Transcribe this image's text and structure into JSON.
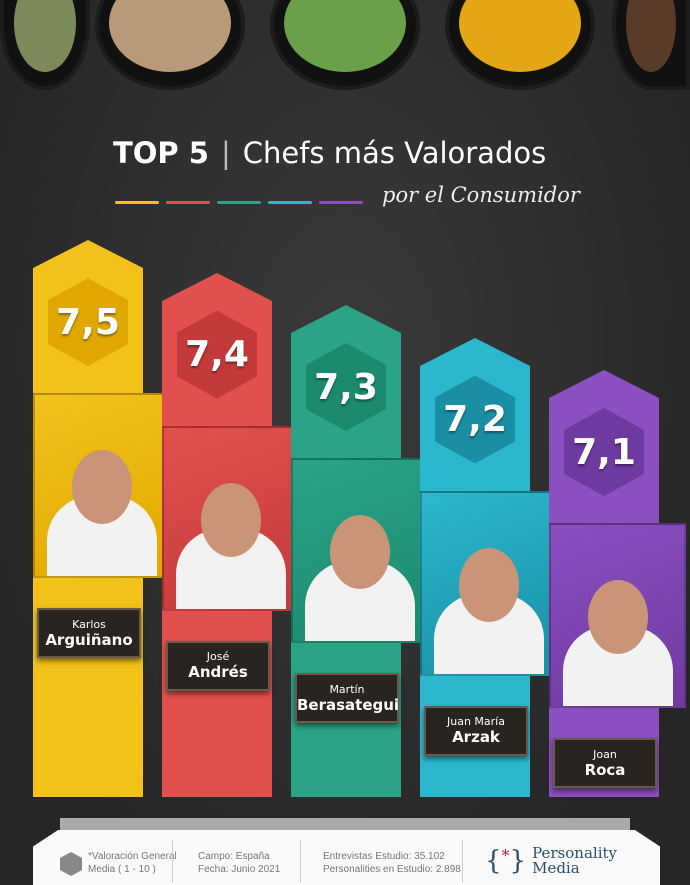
{
  "header": {
    "title_strong": "TOP 5",
    "title_rest": "Chefs más Valorados",
    "subtitle": "por el Consumidor"
  },
  "colors": {
    "yellow": "#f2c21b",
    "red": "#e2504e",
    "teal": "#2aa387",
    "cyan": "#2bb8cf",
    "purple": "#8b4fc0"
  },
  "chart_data": {
    "type": "bar",
    "title": "TOP 5 | Chefs más Valorados por el Consumidor",
    "categories": [
      "Karlos Arguiñano",
      "José Andrés",
      "Martín Berasategui",
      "Juan María Arzak",
      "Joan Roca"
    ],
    "values": [
      7.5,
      7.4,
      7.3,
      7.2,
      7.1
    ],
    "value_labels": [
      "7,5",
      "7,4",
      "7,3",
      "7,2",
      "7,1"
    ],
    "bars": [
      {
        "first": "Karlos",
        "last": "Arguiñano",
        "label": "7,5",
        "value": 7.5,
        "color": "#f2c21b",
        "dark": "#e0a800"
      },
      {
        "first": "José",
        "last": "Andrés",
        "label": "7,4",
        "value": 7.4,
        "color": "#e2504e",
        "dark": "#c43a3a"
      },
      {
        "first": "Martín",
        "last": "Berasategui",
        "label": "7,3",
        "value": 7.3,
        "color": "#2aa387",
        "dark": "#1b8a6f"
      },
      {
        "first": "Juan María",
        "last": "Arzak",
        "label": "7,2",
        "value": 7.2,
        "color": "#2bb8cf",
        "dark": "#1a8ea3"
      },
      {
        "first": "Joan",
        "last": "Roca",
        "label": "7,1",
        "value": 7.1,
        "color": "#8b4fc0",
        "dark": "#6f3aa0"
      }
    ]
  },
  "footer": {
    "note_1": "*Valoración General",
    "note_2": "Media ( 1 - 10 )",
    "campo": "Campo: España",
    "fecha": "Fecha: Junio 2021",
    "entrevistas": "Entrevistas Estudio: 35.102",
    "personalities": "Personalities en Estudio: 2.898",
    "logo_1": "Personality",
    "logo_2": "Media"
  }
}
